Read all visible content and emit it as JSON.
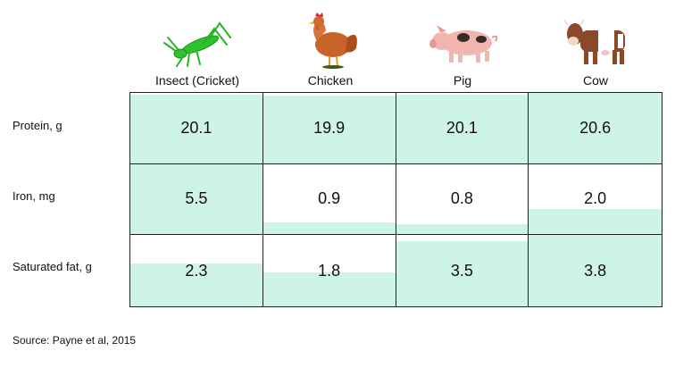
{
  "chart_data": {
    "type": "table",
    "columns": [
      {
        "label": "Insect (Cricket)",
        "icon": "cricket-icon"
      },
      {
        "label": "Chicken",
        "icon": "chicken-icon"
      },
      {
        "label": "Pig",
        "icon": "pig-icon"
      },
      {
        "label": "Cow",
        "icon": "cow-icon"
      }
    ],
    "rows": [
      {
        "label": "Protein, g",
        "values": [
          20.1,
          19.9,
          20.1,
          20.6
        ],
        "display": [
          "20.1",
          "19.9",
          "20.1",
          "20.6"
        ]
      },
      {
        "label": "Iron, mg",
        "values": [
          5.5,
          0.9,
          0.8,
          2.0
        ],
        "display": [
          "5.5",
          "0.9",
          "0.8",
          "2.0"
        ]
      },
      {
        "label": "Saturated fat, g",
        "values": [
          2.3,
          1.8,
          3.5,
          3.8
        ],
        "display": [
          "2.3",
          "1.8",
          "3.5",
          "3.8"
        ]
      }
    ],
    "fill_color": "#cdf4e6",
    "source": "Source: Payne et al, 2015"
  }
}
